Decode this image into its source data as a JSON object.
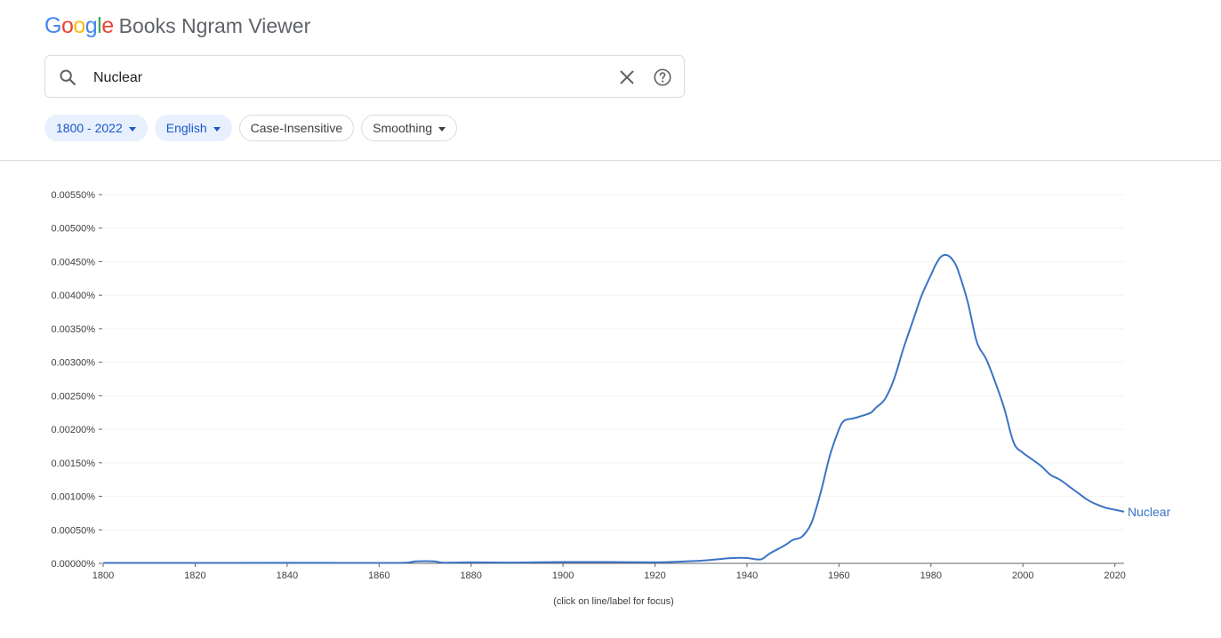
{
  "header": {
    "logo_letters": [
      "G",
      "o",
      "o",
      "g",
      "l",
      "e"
    ],
    "logo_colors": [
      "#4285F4",
      "#EA4335",
      "#FBBC05",
      "#4285F4",
      "#34A853",
      "#EA4335"
    ],
    "app_name": "Books Ngram Viewer"
  },
  "search": {
    "value": "Nuclear",
    "icons": {
      "search": "search-icon",
      "clear": "close-icon",
      "help": "help-icon"
    }
  },
  "filters": {
    "year_range": "1800 - 2022",
    "corpus": "English",
    "case": "Case-Insensitive",
    "smoothing": "Smoothing"
  },
  "chart_footer": "(click on line/label for focus)",
  "colors": {
    "accent": "#3b74c6",
    "chip_bg": "#e8f0fe",
    "chip_text": "#1a57c7"
  },
  "chart_data": {
    "type": "line",
    "xlim": [
      1800,
      2022
    ],
    "ylim": [
      0,
      0.0055
    ],
    "x_ticks": [
      "1800",
      "1820",
      "1840",
      "1860",
      "1880",
      "1900",
      "1920",
      "1940",
      "1960",
      "1980",
      "2000",
      "2020"
    ],
    "y_ticks": [
      "0.00000%",
      "0.00050%",
      "0.00100%",
      "0.00150%",
      "0.00200%",
      "0.00250%",
      "0.00300%",
      "0.00350%",
      "0.00400%",
      "0.00450%",
      "0.00500%",
      "0.00550%"
    ],
    "grid": true,
    "series": [
      {
        "name": "Nuclear",
        "color": "#3b74c6",
        "x": [
          1800,
          1820,
          1840,
          1860,
          1866,
          1868,
          1872,
          1874,
          1880,
          1890,
          1900,
          1910,
          1920,
          1925,
          1930,
          1935,
          1937,
          1940,
          1943,
          1945,
          1948,
          1950,
          1952,
          1954,
          1956,
          1958,
          1960,
          1961,
          1962,
          1963,
          1965,
          1967,
          1968,
          1970,
          1972,
          1974,
          1976,
          1978,
          1980,
          1981,
          1982,
          1983,
          1984,
          1985,
          1986,
          1988,
          1990,
          1992,
          1994,
          1996,
          1998,
          2000,
          2002,
          2004,
          2006,
          2008,
          2010,
          2012,
          2014,
          2016,
          2018,
          2020,
          2022
        ],
        "y": [
          6e-06,
          7e-06,
          8e-06,
          7e-06,
          1e-05,
          3e-05,
          3e-05,
          1e-05,
          1.5e-05,
          1.2e-05,
          2e-05,
          2e-05,
          1.5e-05,
          2.5e-05,
          4e-05,
          7e-05,
          8e-05,
          8e-05,
          6e-05,
          0.00015,
          0.00026,
          0.00035,
          0.0004,
          0.0006,
          0.00105,
          0.0016,
          0.002,
          0.00212,
          0.00215,
          0.00216,
          0.0022,
          0.00225,
          0.00232,
          0.00245,
          0.00275,
          0.0032,
          0.0036,
          0.004,
          0.0043,
          0.00445,
          0.00456,
          0.0046,
          0.00458,
          0.0045,
          0.00435,
          0.0039,
          0.0033,
          0.00305,
          0.0027,
          0.0023,
          0.0018,
          0.00165,
          0.00155,
          0.00145,
          0.00132,
          0.00125,
          0.00115,
          0.00105,
          0.00095,
          0.00088,
          0.00083,
          0.0008,
          0.00077
        ]
      }
    ]
  }
}
